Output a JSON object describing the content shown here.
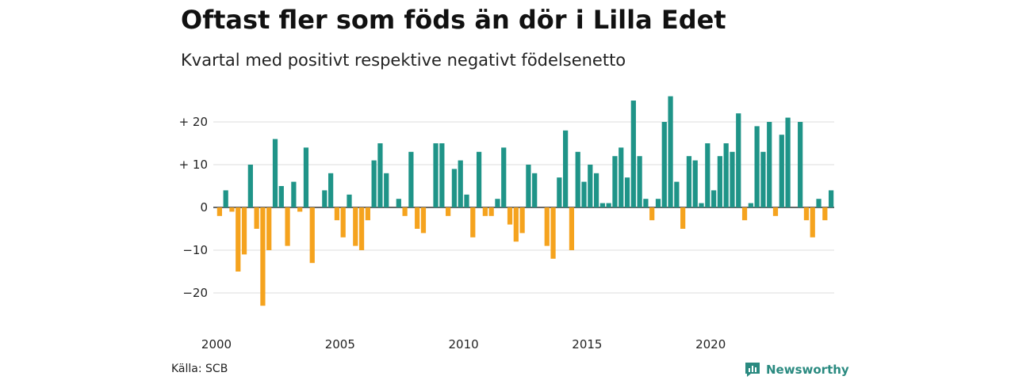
{
  "chart_data": {
    "type": "bar",
    "title": "Oftast fler som föds än dör i Lilla Edet",
    "subtitle": "Kvartal med positivt respektive negativt födelsenetto",
    "source": "Källa: SCB",
    "brand": "Newsworthy",
    "x_start": 2000,
    "quarters_per_year": 4,
    "x_tick_labels": [
      "2000",
      "2005",
      "2010",
      "2015",
      "2020"
    ],
    "x_tick_years": [
      2000,
      2005,
      2010,
      2015,
      2020
    ],
    "y_ticks": [
      20,
      10,
      0,
      -10,
      -20
    ],
    "y_tick_labels": [
      "+ 20",
      "+ 10",
      "0",
      "−10",
      "−20"
    ],
    "ylim": [
      -25,
      27
    ],
    "grid": true,
    "colors": {
      "positive": "#1f9488",
      "negative": "#f5a31e",
      "grid": "#dddddd",
      "axis": "#333333",
      "brand": "#2a8a80"
    },
    "values": [
      -2,
      4,
      -1,
      -15,
      -11,
      10,
      -5,
      -23,
      -10,
      16,
      5,
      -9,
      6,
      -1,
      14,
      -13,
      0,
      4,
      8,
      -3,
      -7,
      3,
      -9,
      -10,
      -3,
      11,
      15,
      8,
      0,
      2,
      -2,
      13,
      -5,
      -6,
      0,
      15,
      15,
      -2,
      9,
      11,
      3,
      -7,
      13,
      -2,
      -2,
      2,
      14,
      -4,
      -8,
      -6,
      10,
      8,
      0,
      -9,
      -12,
      7,
      18,
      -10,
      13,
      6,
      10,
      8,
      1,
      1,
      12,
      14,
      7,
      25,
      12,
      2,
      -3,
      2,
      20,
      26,
      6,
      -5,
      12,
      11,
      1,
      15,
      4,
      12,
      15,
      13,
      22,
      -3,
      1,
      19,
      13,
      20,
      -2,
      17,
      21,
      0,
      20,
      -3,
      -7,
      2,
      -3,
      4
    ]
  }
}
